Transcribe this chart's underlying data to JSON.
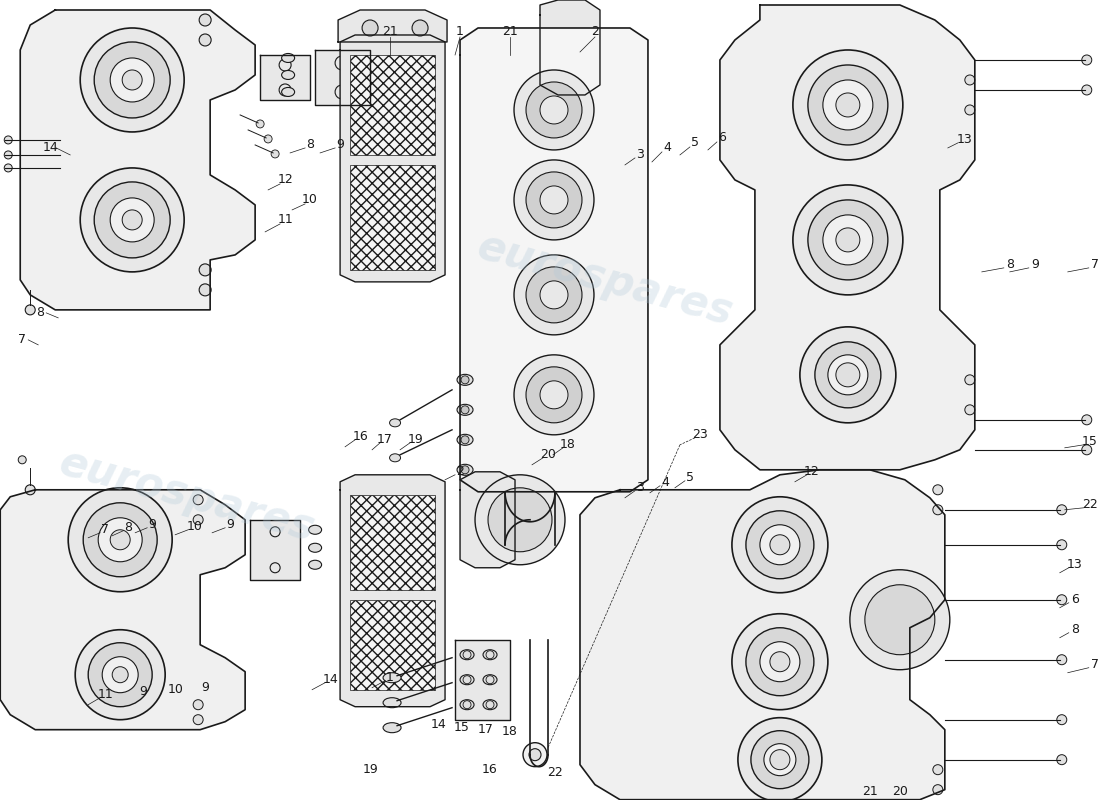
{
  "background_color": "#ffffff",
  "watermark_text": "eurospares",
  "watermark_color": "#b0c8d8",
  "watermark_alpha": 0.3,
  "line_color": "#1a1a1a",
  "text_color": "#1a1a1a"
}
